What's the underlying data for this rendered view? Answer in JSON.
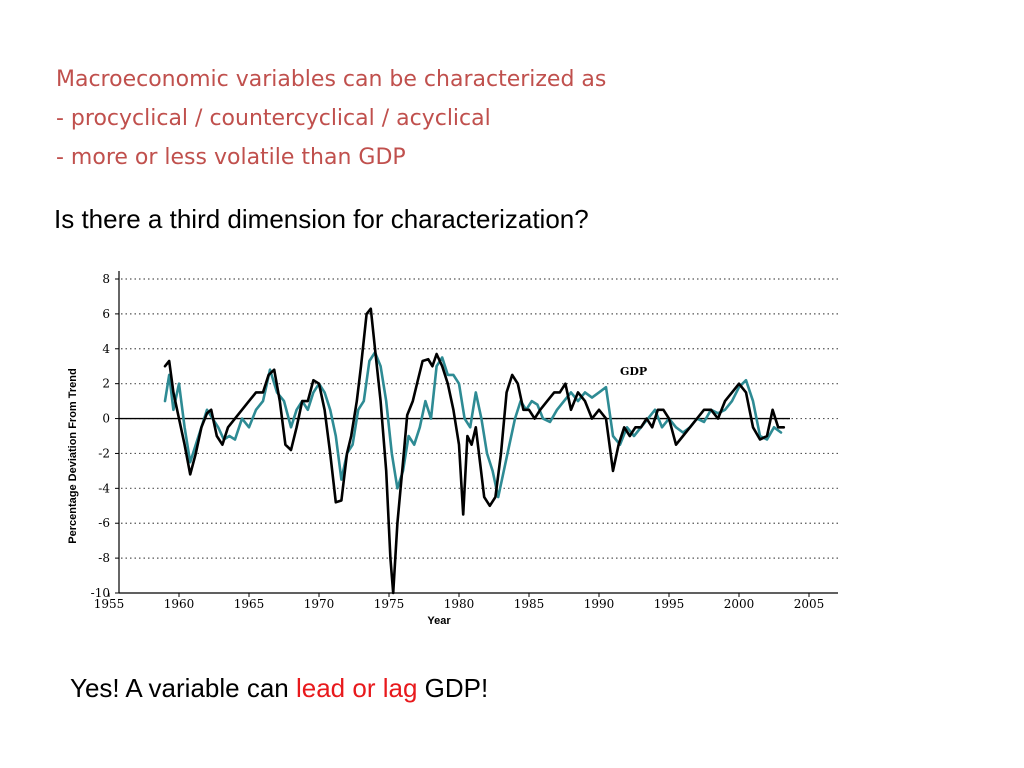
{
  "heading": {
    "line1": "Macroeconomic variables can be characterized as",
    "line2": "- procyclical / countercyclical / acyclical",
    "line3": "- more or less volatile than GDP"
  },
  "question": "Is there a third dimension for characterization?",
  "answer": {
    "prefix": "Yes! A variable can ",
    "highlight": "lead or lag",
    "suffix": " GDP!"
  },
  "colors": {
    "heading": "#c0504d",
    "highlight": "#e8191c",
    "gdp_line": "#000000",
    "other_line": "#2e8b94",
    "gridline": "#555555"
  },
  "chart_data": {
    "type": "line",
    "xlabel": "Year",
    "ylabel": "Percentage Deviation From Trend",
    "xlim": [
      1955,
      2005
    ],
    "ylim": [
      -10,
      8
    ],
    "xticks": [
      1955,
      1960,
      1965,
      1970,
      1975,
      1980,
      1985,
      1990,
      1995,
      2000,
      2005
    ],
    "yticks": [
      8,
      6,
      4,
      2,
      0,
      -2,
      -4,
      -6,
      -8,
      -10
    ],
    "grid": "horizontal-dotted",
    "series": [
      {
        "name": "GDP",
        "role": "gdp",
        "points": [
          [
            1959.0,
            3.0
          ],
          [
            1959.3,
            3.3
          ],
          [
            1959.6,
            1.5
          ],
          [
            1960.0,
            0.0
          ],
          [
            1960.4,
            -1.5
          ],
          [
            1960.8,
            -3.2
          ],
          [
            1961.2,
            -2.0
          ],
          [
            1961.6,
            -0.5
          ],
          [
            1962.0,
            0.3
          ],
          [
            1962.3,
            0.5
          ],
          [
            1962.7,
            -1.0
          ],
          [
            1963.1,
            -1.5
          ],
          [
            1963.5,
            -0.5
          ],
          [
            1964.0,
            0.0
          ],
          [
            1964.5,
            0.5
          ],
          [
            1965.0,
            1.0
          ],
          [
            1965.5,
            1.5
          ],
          [
            1966.0,
            1.5
          ],
          [
            1966.4,
            2.5
          ],
          [
            1966.8,
            2.8
          ],
          [
            1967.2,
            1.0
          ],
          [
            1967.6,
            -1.5
          ],
          [
            1968.0,
            -1.8
          ],
          [
            1968.4,
            -0.5
          ],
          [
            1968.8,
            1.0
          ],
          [
            1969.2,
            1.0
          ],
          [
            1969.6,
            2.2
          ],
          [
            1970.0,
            2.0
          ],
          [
            1970.4,
            0.5
          ],
          [
            1970.8,
            -2.0
          ],
          [
            1971.2,
            -4.8
          ],
          [
            1971.6,
            -4.7
          ],
          [
            1972.0,
            -2.0
          ],
          [
            1972.3,
            -1.0
          ],
          [
            1972.7,
            1.0
          ],
          [
            1973.0,
            3.0
          ],
          [
            1973.4,
            6.0
          ],
          [
            1973.7,
            6.3
          ],
          [
            1974.0,
            4.0
          ],
          [
            1974.4,
            1.0
          ],
          [
            1974.8,
            -3.0
          ],
          [
            1975.1,
            -8.0
          ],
          [
            1975.3,
            -10.0
          ],
          [
            1975.6,
            -6.0
          ],
          [
            1976.0,
            -2.5
          ],
          [
            1976.3,
            0.2
          ],
          [
            1976.7,
            1.0
          ],
          [
            1977.0,
            2.0
          ],
          [
            1977.4,
            3.3
          ],
          [
            1977.8,
            3.4
          ],
          [
            1978.1,
            3.0
          ],
          [
            1978.4,
            3.7
          ],
          [
            1978.8,
            3.0
          ],
          [
            1979.2,
            2.0
          ],
          [
            1979.6,
            0.5
          ],
          [
            1980.0,
            -1.5
          ],
          [
            1980.3,
            -5.5
          ],
          [
            1980.6,
            -1.0
          ],
          [
            1980.9,
            -1.5
          ],
          [
            1981.2,
            -0.5
          ],
          [
            1981.5,
            -2.5
          ],
          [
            1981.8,
            -4.5
          ],
          [
            1982.2,
            -5.0
          ],
          [
            1982.6,
            -4.5
          ],
          [
            1983.0,
            -2.0
          ],
          [
            1983.4,
            1.5
          ],
          [
            1983.8,
            2.5
          ],
          [
            1984.2,
            2.0
          ],
          [
            1984.6,
            0.5
          ],
          [
            1985.0,
            0.5
          ],
          [
            1985.4,
            0.0
          ],
          [
            1985.8,
            0.5
          ],
          [
            1986.3,
            1.0
          ],
          [
            1986.8,
            1.5
          ],
          [
            1987.2,
            1.5
          ],
          [
            1987.6,
            2.0
          ],
          [
            1988.0,
            0.5
          ],
          [
            1988.5,
            1.5
          ],
          [
            1989.0,
            1.0
          ],
          [
            1989.5,
            0.0
          ],
          [
            1990.0,
            0.5
          ],
          [
            1990.5,
            0.0
          ],
          [
            1991.0,
            -3.0
          ],
          [
            1991.4,
            -1.5
          ],
          [
            1991.8,
            -0.5
          ],
          [
            1992.2,
            -1.0
          ],
          [
            1992.6,
            -0.5
          ],
          [
            1993.0,
            -0.5
          ],
          [
            1993.4,
            0.0
          ],
          [
            1993.8,
            -0.5
          ],
          [
            1994.2,
            0.5
          ],
          [
            1994.6,
            0.5
          ],
          [
            1995.0,
            0.0
          ],
          [
            1995.5,
            -1.5
          ],
          [
            1996.0,
            -1.0
          ],
          [
            1996.5,
            -0.5
          ],
          [
            1997.0,
            0.0
          ],
          [
            1997.5,
            0.5
          ],
          [
            1998.0,
            0.5
          ],
          [
            1998.5,
            0.0
          ],
          [
            1999.0,
            1.0
          ],
          [
            1999.5,
            1.5
          ],
          [
            2000.0,
            2.0
          ],
          [
            2000.5,
            1.5
          ],
          [
            2001.0,
            -0.5
          ],
          [
            2001.5,
            -1.2
          ],
          [
            2002.0,
            -1.0
          ],
          [
            2002.4,
            0.5
          ],
          [
            2002.8,
            -0.5
          ],
          [
            2003.2,
            -0.5
          ]
        ]
      },
      {
        "name": "",
        "role": "other",
        "points": [
          [
            1959.0,
            1.0
          ],
          [
            1959.3,
            2.5
          ],
          [
            1959.6,
            0.5
          ],
          [
            1960.0,
            2.0
          ],
          [
            1960.4,
            -0.5
          ],
          [
            1960.8,
            -2.5
          ],
          [
            1961.2,
            -1.5
          ],
          [
            1961.6,
            -0.5
          ],
          [
            1962.0,
            0.5
          ],
          [
            1962.4,
            0.0
          ],
          [
            1962.8,
            -0.5
          ],
          [
            1963.2,
            -1.2
          ],
          [
            1963.6,
            -1.0
          ],
          [
            1964.0,
            -1.2
          ],
          [
            1964.5,
            0.0
          ],
          [
            1965.0,
            -0.5
          ],
          [
            1965.5,
            0.5
          ],
          [
            1966.0,
            1.0
          ],
          [
            1966.5,
            2.8
          ],
          [
            1967.0,
            1.5
          ],
          [
            1967.5,
            1.0
          ],
          [
            1968.0,
            -0.5
          ],
          [
            1968.4,
            0.5
          ],
          [
            1968.8,
            1.0
          ],
          [
            1969.2,
            0.5
          ],
          [
            1969.6,
            1.5
          ],
          [
            1970.0,
            2.0
          ],
          [
            1970.4,
            1.5
          ],
          [
            1970.8,
            0.5
          ],
          [
            1971.2,
            -1.0
          ],
          [
            1971.6,
            -3.5
          ],
          [
            1972.0,
            -2.0
          ],
          [
            1972.4,
            -1.5
          ],
          [
            1972.8,
            0.5
          ],
          [
            1973.2,
            1.0
          ],
          [
            1973.6,
            3.3
          ],
          [
            1974.0,
            3.8
          ],
          [
            1974.4,
            3.0
          ],
          [
            1974.8,
            1.0
          ],
          [
            1975.2,
            -2.0
          ],
          [
            1975.6,
            -4.0
          ],
          [
            1976.0,
            -3.0
          ],
          [
            1976.4,
            -1.0
          ],
          [
            1976.8,
            -1.5
          ],
          [
            1977.2,
            -0.5
          ],
          [
            1977.6,
            1.0
          ],
          [
            1978.0,
            0.0
          ],
          [
            1978.4,
            3.0
          ],
          [
            1978.8,
            3.5
          ],
          [
            1979.2,
            2.5
          ],
          [
            1979.6,
            2.5
          ],
          [
            1980.0,
            2.0
          ],
          [
            1980.4,
            0.0
          ],
          [
            1980.8,
            -0.5
          ],
          [
            1981.2,
            1.5
          ],
          [
            1981.6,
            0.0
          ],
          [
            1982.0,
            -2.0
          ],
          [
            1982.4,
            -3.0
          ],
          [
            1982.8,
            -4.5
          ],
          [
            1983.2,
            -3.0
          ],
          [
            1983.6,
            -1.5
          ],
          [
            1984.0,
            0.0
          ],
          [
            1984.4,
            1.0
          ],
          [
            1984.8,
            0.5
          ],
          [
            1985.2,
            1.0
          ],
          [
            1985.6,
            0.8
          ],
          [
            1986.0,
            0.0
          ],
          [
            1986.5,
            -0.2
          ],
          [
            1987.0,
            0.5
          ],
          [
            1987.5,
            1.0
          ],
          [
            1988.0,
            1.5
          ],
          [
            1988.5,
            1.0
          ],
          [
            1989.0,
            1.5
          ],
          [
            1989.5,
            1.2
          ],
          [
            1990.0,
            1.5
          ],
          [
            1990.5,
            1.8
          ],
          [
            1991.0,
            -1.0
          ],
          [
            1991.5,
            -1.5
          ],
          [
            1992.0,
            -0.5
          ],
          [
            1992.5,
            -1.0
          ],
          [
            1993.0,
            -0.5
          ],
          [
            1993.5,
            0.0
          ],
          [
            1994.0,
            0.5
          ],
          [
            1994.5,
            -0.5
          ],
          [
            1995.0,
            0.0
          ],
          [
            1995.5,
            -0.5
          ],
          [
            1996.0,
            -0.8
          ],
          [
            1996.5,
            -0.5
          ],
          [
            1997.0,
            0.0
          ],
          [
            1997.5,
            -0.2
          ],
          [
            1998.0,
            0.5
          ],
          [
            1998.5,
            0.3
          ],
          [
            1999.0,
            0.5
          ],
          [
            1999.5,
            1.0
          ],
          [
            2000.0,
            1.8
          ],
          [
            2000.5,
            2.2
          ],
          [
            2001.0,
            1.0
          ],
          [
            2001.5,
            -1.0
          ],
          [
            2002.0,
            -1.2
          ],
          [
            2002.5,
            -0.5
          ],
          [
            2003.0,
            -0.8
          ]
        ]
      }
    ]
  }
}
